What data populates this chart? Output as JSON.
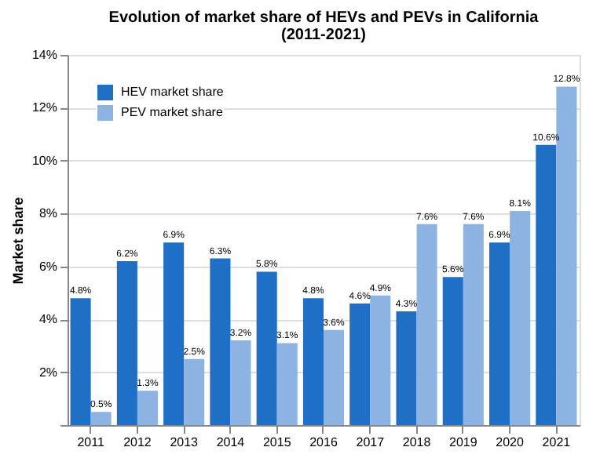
{
  "chart_data": {
    "type": "bar",
    "title": "Evolution of market share of HEVs and PEVs in California",
    "subtitle": "(2011-2021)",
    "ylabel": "Market share",
    "categories": [
      "2011",
      "2012",
      "2013",
      "2014",
      "2015",
      "2016",
      "2017",
      "2018",
      "2019",
      "2020",
      "2021"
    ],
    "series": [
      {
        "name": "HEV market share",
        "color": "#1f6fc6",
        "values": [
          4.8,
          6.2,
          6.9,
          6.3,
          5.8,
          4.8,
          4.6,
          4.3,
          5.6,
          6.9,
          10.6
        ],
        "value_labels": [
          "4.8%",
          "6.2%",
          "6.9%",
          "6.3%",
          "5.8%",
          "4.8%",
          "4.6%",
          "4.3%",
          "5.6%",
          "6.9%",
          "10.6%"
        ]
      },
      {
        "name": "PEV market share",
        "color": "#8db3e2",
        "values": [
          0.5,
          1.3,
          2.5,
          3.2,
          3.1,
          3.6,
          4.9,
          7.6,
          7.6,
          8.1,
          12.8
        ],
        "value_labels": [
          "0.5%",
          "1.3%",
          "2.5%",
          "3.2%",
          "3.1%",
          "3.6%",
          "4.9%",
          "7.6%",
          "7.6%",
          "8.1%",
          "12.8%"
        ]
      }
    ],
    "ylim": [
      0,
      14
    ],
    "yticks": [
      {
        "value": 0,
        "label": null
      },
      {
        "value": 2,
        "label": "2%"
      },
      {
        "value": 4,
        "label": "4%"
      },
      {
        "value": 6,
        "label": "6%"
      },
      {
        "value": 8,
        "label": "8%"
      },
      {
        "value": 10,
        "label": "10%"
      },
      {
        "value": 12,
        "label": "12%"
      },
      {
        "value": 14,
        "label": "14%"
      }
    ],
    "grid": "y",
    "legend": "top left"
  }
}
